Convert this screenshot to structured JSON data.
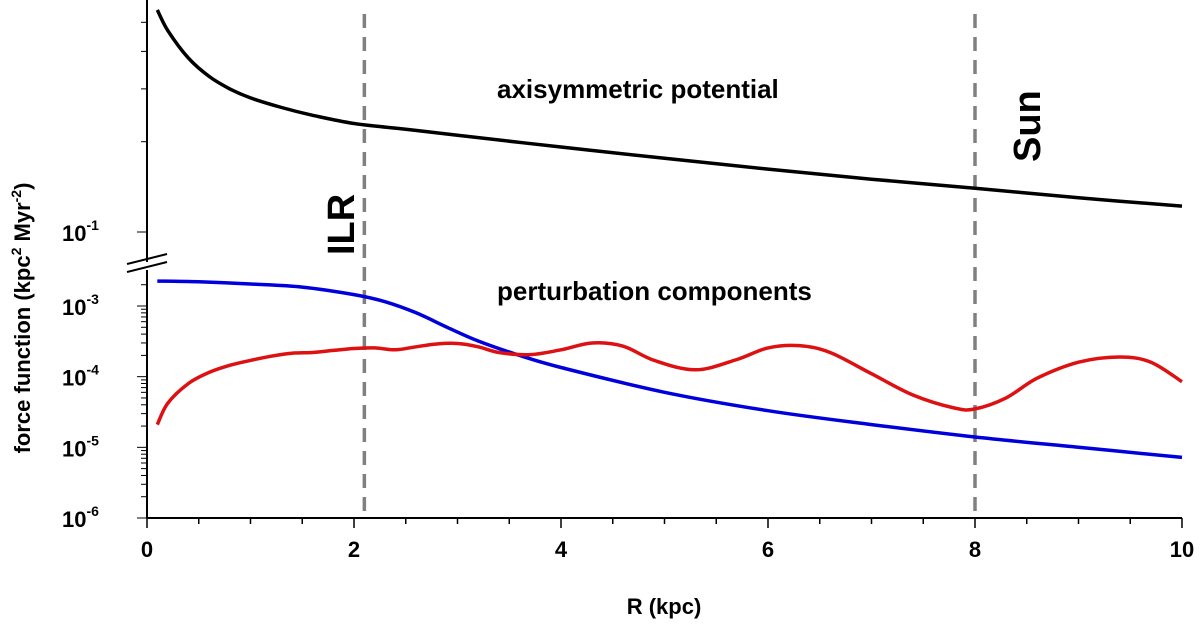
{
  "chart_data": {
    "type": "line",
    "title": "",
    "xlabel": "R (kpc)",
    "ylabel_main": "force function (kpc",
    "ylabel_sup1": "2",
    "ylabel_mid": " Myr",
    "ylabel_sup2": "-2",
    "ylabel_end": ")",
    "xlim": [
      0,
      10
    ],
    "x_ticks": [
      "0",
      "2",
      "4",
      "6",
      "8",
      "10"
    ],
    "y_scale": "log",
    "y_axis_break": true,
    "y_ticks": [
      {
        "base": "10",
        "exp": "-1"
      },
      {
        "base": "10",
        "exp": "-3"
      },
      {
        "base": "10",
        "exp": "-4"
      },
      {
        "base": "10",
        "exp": "-5"
      },
      {
        "base": "10",
        "exp": "-6"
      }
    ],
    "grid": false,
    "annotations": {
      "upper_panel": "axisymmetric potential",
      "lower_panel": "perturbation components",
      "ilr": "ILR",
      "sun": "Sun"
    },
    "vertical_lines": [
      {
        "x": 2.1,
        "label": "ILR",
        "color": "#808080"
      },
      {
        "x": 8.0,
        "label": "Sun",
        "color": "#808080"
      }
    ],
    "series": [
      {
        "name": "",
        "panel": "upper",
        "color": "#000000",
        "x": [
          0.1,
          0.2,
          0.4,
          0.6,
          0.8,
          1.0,
          1.3,
          1.6,
          2.0,
          2.5,
          3.0,
          4.0,
          5.0,
          6.0,
          7.0,
          8.0,
          9.0,
          10.0
        ],
        "y": [
          0.55,
          0.47,
          0.38,
          0.33,
          0.3,
          0.28,
          0.26,
          0.245,
          0.23,
          0.22,
          0.21,
          0.192,
          0.176,
          0.162,
          0.15,
          0.14,
          0.13,
          0.122
        ]
      },
      {
        "name": "",
        "panel": "lower",
        "color": "#0000dd",
        "x": [
          0.1,
          0.5,
          1.0,
          1.5,
          2.0,
          2.3,
          2.6,
          2.9,
          3.2,
          3.6,
          4.0,
          5.0,
          6.0,
          7.0,
          8.0,
          9.0,
          10.0
        ],
        "y": [
          0.00225,
          0.0022,
          0.00205,
          0.00185,
          0.00145,
          0.00115,
          0.0008,
          0.0005,
          0.00032,
          0.0002,
          0.000135,
          6e-05,
          3.3e-05,
          2.1e-05,
          1.4e-05,
          1e-05,
          7.2e-06
        ]
      },
      {
        "name": "",
        "panel": "lower",
        "color": "#dd1111",
        "x": [
          0.1,
          0.2,
          0.4,
          0.6,
          0.8,
          1.0,
          1.2,
          1.4,
          1.6,
          1.8,
          2.0,
          2.2,
          2.4,
          2.6,
          2.8,
          3.0,
          3.2,
          3.4,
          3.7,
          4.0,
          4.3,
          4.6,
          4.9,
          5.3,
          5.7,
          6.0,
          6.3,
          6.6,
          7.0,
          7.4,
          7.8,
          8.0,
          8.3,
          8.6,
          9.0,
          9.4,
          9.7,
          10.0
        ],
        "y": [
          2.1e-05,
          4.2e-05,
          8e-05,
          0.000115,
          0.000145,
          0.00017,
          0.000195,
          0.000215,
          0.00022,
          0.000235,
          0.00025,
          0.000255,
          0.00024,
          0.000265,
          0.00029,
          0.000295,
          0.000265,
          0.00022,
          0.000205,
          0.00024,
          0.0003,
          0.00027,
          0.00017,
          0.000125,
          0.000175,
          0.000255,
          0.000275,
          0.00022,
          0.00011,
          5.5e-05,
          3.6e-05,
          3.5e-05,
          5e-05,
          9.5e-05,
          0.00016,
          0.00019,
          0.00016,
          8.5e-05
        ]
      }
    ]
  }
}
